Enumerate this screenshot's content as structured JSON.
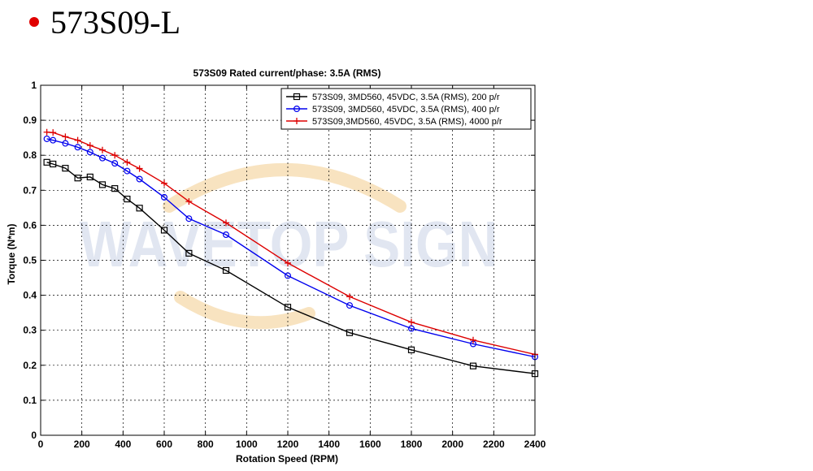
{
  "heading": {
    "text": "573S09-L",
    "bullet_color": "#e00000"
  },
  "chart_data": {
    "type": "line",
    "title": "573S09 Rated current/phase: 3.5A (RMS)",
    "xlabel": "Rotation Speed (RPM)",
    "ylabel": "Torque (N*m)",
    "xlim": [
      0,
      2400
    ],
    "ylim": [
      0,
      1
    ],
    "xticks": [
      "0",
      "200",
      "400",
      "600",
      "800",
      "1000",
      "1200",
      "1400",
      "1600",
      "1800",
      "2000",
      "2200",
      "2400"
    ],
    "yticks": [
      "0",
      "0.1",
      "0.2",
      "0.3",
      "0.4",
      "0.5",
      "0.6",
      "0.7",
      "0.8",
      "0.9",
      "1"
    ],
    "grid": true,
    "legend_position": "top-right",
    "watermark": "WAVETOP SIGN",
    "series": [
      {
        "name": "573S09, 3MD560, 45VDC, 3.5A (RMS), 200 p/r",
        "color": "#000000",
        "marker": "square",
        "x": [
          30,
          60,
          120,
          180,
          240,
          300,
          360,
          420,
          480,
          600,
          720,
          900,
          1200,
          1500,
          1800,
          2100,
          2400
        ],
        "y": [
          0.78,
          0.775,
          0.763,
          0.735,
          0.738,
          0.716,
          0.705,
          0.675,
          0.649,
          0.586,
          0.52,
          0.471,
          0.366,
          0.293,
          0.244,
          0.198,
          0.176
        ]
      },
      {
        "name": "573S09, 3MD560, 45VDC, 3.5A (RMS), 400 p/r",
        "color": "#0000ee",
        "marker": "circle",
        "x": [
          30,
          60,
          120,
          180,
          240,
          300,
          360,
          420,
          480,
          600,
          720,
          900,
          1200,
          1500,
          1800,
          2100,
          2400
        ],
        "y": [
          0.847,
          0.843,
          0.834,
          0.823,
          0.809,
          0.792,
          0.777,
          0.755,
          0.732,
          0.68,
          0.619,
          0.573,
          0.456,
          0.371,
          0.305,
          0.261,
          0.224
        ]
      },
      {
        "name": "573S09,3MD560, 45VDC, 3.5A (RMS), 4000 p/r",
        "color": "#dd0000",
        "marker": "plus",
        "x": [
          30,
          60,
          120,
          180,
          240,
          300,
          360,
          420,
          480,
          600,
          720,
          900,
          1200,
          1500,
          1800,
          2100,
          2400
        ],
        "y": [
          0.866,
          0.865,
          0.853,
          0.843,
          0.828,
          0.815,
          0.8,
          0.78,
          0.762,
          0.72,
          0.668,
          0.607,
          0.492,
          0.396,
          0.323,
          0.272,
          0.231
        ]
      }
    ]
  }
}
